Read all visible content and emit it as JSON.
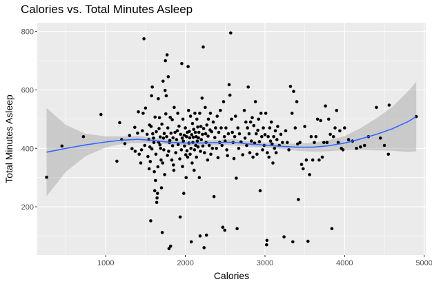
{
  "chart_data": {
    "type": "scatter",
    "title": "Calories vs. Total Minutes Asleep",
    "xlabel": "Calories",
    "ylabel": "Total Minutes Asleep",
    "xlim": [
      140,
      5020
    ],
    "ylim": [
      35,
      830
    ],
    "x_ticks": [
      1000,
      2000,
      3000,
      4000,
      5000
    ],
    "x_minor_ticks": [
      500,
      1500,
      2500,
      3500,
      4500
    ],
    "y_ticks": [
      200,
      400,
      600,
      800
    ],
    "y_minor_ticks": [
      100,
      300,
      500,
      700
    ],
    "grid": true,
    "colors": {
      "panel": "#ebebeb",
      "grid": "#ffffff",
      "points": "#000000",
      "smooth_line": "#3366ff",
      "ribbon": "#999999"
    },
    "smooth": {
      "method": "loess",
      "x": [
        257,
        500,
        750,
        1000,
        1200,
        1400,
        1600,
        1800,
        2000,
        2200,
        2400,
        2600,
        2800,
        3000,
        3200,
        3400,
        3600,
        3800,
        4000,
        4200,
        4400,
        4600,
        4800,
        4900
      ],
      "y": [
        387,
        400,
        412,
        422,
        428,
        431,
        427,
        421,
        418,
        418,
        420,
        421,
        415,
        411,
        407,
        404,
        404,
        409,
        418,
        432,
        448,
        467,
        492,
        509
      ],
      "lower": [
        236,
        320,
        374,
        403,
        415,
        419,
        418,
        413,
        409,
        409,
        411,
        410,
        406,
        402,
        398,
        392,
        389,
        390,
        394,
        395,
        393,
        392,
        388,
        390
      ],
      "upper": [
        538,
        480,
        450,
        441,
        441,
        443,
        436,
        429,
        427,
        427,
        429,
        432,
        424,
        420,
        416,
        416,
        419,
        428,
        442,
        469,
        503,
        542,
        596,
        628
      ]
    },
    "points": [
      [
        257,
        301
      ],
      [
        450,
        408
      ],
      [
        720,
        440
      ],
      [
        940,
        516
      ],
      [
        1140,
        356
      ],
      [
        1175,
        488
      ],
      [
        1200,
        430
      ],
      [
        1240,
        416
      ],
      [
        1300,
        444
      ],
      [
        1330,
        399
      ],
      [
        1365,
        472
      ],
      [
        1370,
        390
      ],
      [
        1400,
        452
      ],
      [
        1410,
        525
      ],
      [
        1420,
        380
      ],
      [
        1440,
        350
      ],
      [
        1450,
        395
      ],
      [
        1460,
        460
      ],
      [
        1470,
        520
      ],
      [
        1480,
        775
      ],
      [
        1490,
        410
      ],
      [
        1500,
        538
      ],
      [
        1520,
        448
      ],
      [
        1530,
        372
      ],
      [
        1540,
        430
      ],
      [
        1545,
        330
      ],
      [
        1550,
        480
      ],
      [
        1555,
        405
      ],
      [
        1560,
        355
      ],
      [
        1565,
        152
      ],
      [
        1570,
        475
      ],
      [
        1575,
        580
      ],
      [
        1580,
        398
      ],
      [
        1585,
        610
      ],
      [
        1590,
        450
      ],
      [
        1600,
        435
      ],
      [
        1605,
        420
      ],
      [
        1610,
        320
      ],
      [
        1615,
        255
      ],
      [
        1620,
        507
      ],
      [
        1625,
        290
      ],
      [
        1630,
        380
      ],
      [
        1635,
        457
      ],
      [
        1640,
        215
      ],
      [
        1645,
        230
      ],
      [
        1650,
        246
      ],
      [
        1655,
        337
      ],
      [
        1660,
        570
      ],
      [
        1665,
        421
      ],
      [
        1670,
        468
      ],
      [
        1675,
        505
      ],
      [
        1680,
        412
      ],
      [
        1685,
        439
      ],
      [
        1690,
        400
      ],
      [
        1695,
        360
      ],
      [
        1700,
        265
      ],
      [
        1705,
        483
      ],
      [
        1710,
        112
      ],
      [
        1715,
        350
      ],
      [
        1720,
        630
      ],
      [
        1725,
        435
      ],
      [
        1730,
        395
      ],
      [
        1735,
        451
      ],
      [
        1740,
        310
      ],
      [
        1745,
        598
      ],
      [
        1750,
        700
      ],
      [
        1755,
        518
      ],
      [
        1760,
        580
      ],
      [
        1765,
        440
      ],
      [
        1770,
        720
      ],
      [
        1775,
        376
      ],
      [
        1780,
        470
      ],
      [
        1785,
        645
      ],
      [
        1790,
        390
      ],
      [
        1795,
        57
      ],
      [
        1800,
        420
      ],
      [
        1805,
        427
      ],
      [
        1810,
        506
      ],
      [
        1815,
        65
      ],
      [
        1820,
        452
      ],
      [
        1830,
        360
      ],
      [
        1835,
        498
      ],
      [
        1840,
        409
      ],
      [
        1845,
        436
      ],
      [
        1850,
        343
      ],
      [
        1855,
        325
      ],
      [
        1860,
        540
      ],
      [
        1870,
        455
      ],
      [
        1880,
        385
      ],
      [
        1890,
        430
      ],
      [
        1900,
        460
      ],
      [
        1905,
        520
      ],
      [
        1910,
        413
      ],
      [
        1920,
        476
      ],
      [
        1930,
        364
      ],
      [
        1935,
        165
      ],
      [
        1940,
        448
      ],
      [
        1950,
        395
      ],
      [
        1955,
        690
      ],
      [
        1960,
        435
      ],
      [
        1965,
        338
      ],
      [
        1970,
        500
      ],
      [
        1975,
        425
      ],
      [
        1980,
        246
      ],
      [
        1985,
        445
      ],
      [
        1990,
        408
      ],
      [
        2000,
        470
      ],
      [
        2005,
        378
      ],
      [
        2010,
        300
      ],
      [
        2015,
        440
      ],
      [
        2020,
        392
      ],
      [
        2025,
        455
      ],
      [
        2030,
        370
      ],
      [
        2035,
        680
      ],
      [
        2040,
        530
      ],
      [
        2045,
        418
      ],
      [
        2050,
        458
      ],
      [
        2055,
        436
      ],
      [
        2060,
        380
      ],
      [
        2065,
        510
      ],
      [
        2070,
        400
      ],
      [
        2075,
        80
      ],
      [
        2080,
        447
      ],
      [
        2085,
        350
      ],
      [
        2090,
        485
      ],
      [
        2095,
        420
      ],
      [
        2100,
        438
      ],
      [
        2105,
        465
      ],
      [
        2110,
        325
      ],
      [
        2115,
        395
      ],
      [
        2120,
        520
      ],
      [
        2125,
        455
      ],
      [
        2130,
        410
      ],
      [
        2135,
        440
      ],
      [
        2140,
        370
      ],
      [
        2145,
        500
      ],
      [
        2150,
        425
      ],
      [
        2155,
        473
      ],
      [
        2160,
        405
      ],
      [
        2165,
        436
      ],
      [
        2170,
        455
      ],
      [
        2175,
        300
      ],
      [
        2180,
        520
      ],
      [
        2185,
        100
      ],
      [
        2190,
        390
      ],
      [
        2195,
        475
      ],
      [
        2200,
        430
      ],
      [
        2210,
        572
      ],
      [
        2215,
        448
      ],
      [
        2220,
        408
      ],
      [
        2225,
        747
      ],
      [
        2230,
        468
      ],
      [
        2235,
        60
      ],
      [
        2240,
        385
      ],
      [
        2250,
        540
      ],
      [
        2255,
        450
      ],
      [
        2260,
        420
      ],
      [
        2265,
        103
      ],
      [
        2270,
        480
      ],
      [
        2280,
        360
      ],
      [
        2285,
        442
      ],
      [
        2290,
        500
      ],
      [
        2300,
        410
      ],
      [
        2310,
        463
      ],
      [
        2315,
        520
      ],
      [
        2320,
        380
      ],
      [
        2330,
        457
      ],
      [
        2340,
        400
      ],
      [
        2350,
        490
      ],
      [
        2360,
        235
      ],
      [
        2370,
        437
      ],
      [
        2380,
        470
      ],
      [
        2390,
        400
      ],
      [
        2400,
        510
      ],
      [
        2410,
        368
      ],
      [
        2420,
        455
      ],
      [
        2430,
        420
      ],
      [
        2440,
        530
      ],
      [
        2450,
        470
      ],
      [
        2460,
        410
      ],
      [
        2470,
        130
      ],
      [
        2480,
        560
      ],
      [
        2490,
        440
      ],
      [
        2495,
        120
      ],
      [
        2500,
        425
      ],
      [
        2510,
        470
      ],
      [
        2520,
        395
      ],
      [
        2530,
        375
      ],
      [
        2540,
        450
      ],
      [
        2550,
        618
      ],
      [
        2560,
        582
      ],
      [
        2570,
        795
      ],
      [
        2580,
        500
      ],
      [
        2590,
        455
      ],
      [
        2600,
        420
      ],
      [
        2610,
        365
      ],
      [
        2620,
        440
      ],
      [
        2630,
        510
      ],
      [
        2640,
        298
      ],
      [
        2650,
        125
      ],
      [
        2660,
        470
      ],
      [
        2670,
        400
      ],
      [
        2680,
        450
      ],
      [
        2700,
        422
      ],
      [
        2720,
        378
      ],
      [
        2740,
        530
      ],
      [
        2750,
        435
      ],
      [
        2760,
        490
      ],
      [
        2770,
        410
      ],
      [
        2780,
        470
      ],
      [
        2790,
        610
      ],
      [
        2800,
        450
      ],
      [
        2810,
        385
      ],
      [
        2820,
        490
      ],
      [
        2830,
        425
      ],
      [
        2840,
        505
      ],
      [
        2850,
        370
      ],
      [
        2860,
        478
      ],
      [
        2870,
        418
      ],
      [
        2880,
        560
      ],
      [
        2890,
        450
      ],
      [
        2900,
        380
      ],
      [
        2910,
        462
      ],
      [
        2920,
        500
      ],
      [
        2930,
        423
      ],
      [
        2940,
        255
      ],
      [
        2950,
        520
      ],
      [
        2960,
        440
      ],
      [
        2970,
        395
      ],
      [
        2980,
        470
      ],
      [
        2990,
        410
      ],
      [
        3000,
        447
      ],
      [
        3010,
        520
      ],
      [
        3020,
        70
      ],
      [
        3025,
        85
      ],
      [
        3030,
        385
      ],
      [
        3040,
        440
      ],
      [
        3050,
        370
      ],
      [
        3060,
        470
      ],
      [
        3070,
        425
      ],
      [
        3080,
        490
      ],
      [
        3090,
        415
      ],
      [
        3100,
        350
      ],
      [
        3110,
        440
      ],
      [
        3120,
        400
      ],
      [
        3130,
        460
      ],
      [
        3140,
        385
      ],
      [
        3150,
        430
      ],
      [
        3160,
        475
      ],
      [
        3180,
        410
      ],
      [
        3200,
        448
      ],
      [
        3220,
        420
      ],
      [
        3240,
        97
      ],
      [
        3260,
        460
      ],
      [
        3280,
        420
      ],
      [
        3300,
        395
      ],
      [
        3320,
        612
      ],
      [
        3340,
        520
      ],
      [
        3350,
        80
      ],
      [
        3360,
        595
      ],
      [
        3380,
        470
      ],
      [
        3400,
        560
      ],
      [
        3410,
        415
      ],
      [
        3420,
        225
      ],
      [
        3440,
        420
      ],
      [
        3460,
        345
      ],
      [
        3480,
        330
      ],
      [
        3500,
        475
      ],
      [
        3520,
        360
      ],
      [
        3540,
        82
      ],
      [
        3560,
        310
      ],
      [
        3580,
        440
      ],
      [
        3600,
        360
      ],
      [
        3620,
        420
      ],
      [
        3640,
        440
      ],
      [
        3660,
        500
      ],
      [
        3680,
        360
      ],
      [
        3700,
        495
      ],
      [
        3720,
        370
      ],
      [
        3740,
        420
      ],
      [
        3760,
        545
      ],
      [
        3780,
        420
      ],
      [
        3800,
        500
      ],
      [
        3820,
        448
      ],
      [
        3840,
        125
      ],
      [
        3860,
        440
      ],
      [
        3880,
        470
      ],
      [
        3900,
        530
      ],
      [
        3920,
        420
      ],
      [
        3940,
        460
      ],
      [
        3960,
        400
      ],
      [
        3980,
        395
      ],
      [
        4000,
        470
      ],
      [
        4050,
        430
      ],
      [
        4100,
        425
      ],
      [
        4150,
        400
      ],
      [
        4200,
        405
      ],
      [
        4250,
        410
      ],
      [
        4300,
        440
      ],
      [
        4400,
        540
      ],
      [
        4450,
        435
      ],
      [
        4500,
        410
      ],
      [
        4550,
        380
      ],
      [
        4560,
        548
      ],
      [
        4900,
        509
      ]
    ]
  }
}
